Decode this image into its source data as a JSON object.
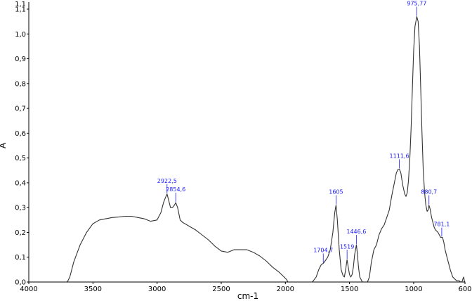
{
  "chart_data": {
    "type": "line",
    "xlabel": "cm-1",
    "ylabel": "A",
    "xlim": [
      4000,
      600
    ],
    "ylim": [
      0.0,
      1.1
    ],
    "x_reversed": true,
    "x_ticks": [
      {
        "v": 4000,
        "label": "4000"
      },
      {
        "v": 3500,
        "label": "3500"
      },
      {
        "v": 3000,
        "label": "3000"
      },
      {
        "v": 2500,
        "label": "2500"
      },
      {
        "v": 2000,
        "label": "2000"
      },
      {
        "v": 1500,
        "label": "1500"
      },
      {
        "v": 1000,
        "label": "1000"
      },
      {
        "v": 600,
        "label": "600"
      }
    ],
    "y_ticks": [
      {
        "v": 0.0,
        "label": "0,0"
      },
      {
        "v": 0.1,
        "label": "0,1"
      },
      {
        "v": 0.2,
        "label": "0,2"
      },
      {
        "v": 0.3,
        "label": "0,3"
      },
      {
        "v": 0.4,
        "label": "0,4"
      },
      {
        "v": 0.5,
        "label": "0,5"
      },
      {
        "v": 0.6,
        "label": "0,6"
      },
      {
        "v": 0.7,
        "label": "0,7"
      },
      {
        "v": 0.8,
        "label": "0,8"
      },
      {
        "v": 0.9,
        "label": "0,9"
      },
      {
        "v": 1.0,
        "label": "1,0"
      },
      {
        "v": 1.1,
        "label": "1,1"
      }
    ],
    "y_top_label": "1,1",
    "grid": false,
    "line_color": "#333333",
    "annotation_color": "#1a1aff",
    "series": [
      {
        "values_x": [
          3700,
          3680,
          3650,
          3600,
          3550,
          3500,
          3450,
          3400,
          3350,
          3300,
          3250,
          3200,
          3150,
          3100,
          3050,
          3000,
          2970,
          2950,
          2935,
          2922.5,
          2910,
          2895,
          2880,
          2865,
          2854.6,
          2840,
          2820,
          2800,
          2750,
          2700,
          2650,
          2600,
          2550,
          2500,
          2450,
          2400,
          2350,
          2300,
          2250,
          2200,
          2150,
          2100,
          2050,
          2010,
          1990,
          1980,
          1800,
          1790,
          1760,
          1740,
          1720,
          1704.7,
          1690,
          1670,
          1650,
          1630,
          1615,
          1605,
          1595,
          1580,
          1565,
          1550,
          1540,
          1530,
          1519,
          1510,
          1500,
          1490,
          1480,
          1470,
          1460,
          1446.6,
          1440,
          1430,
          1420,
          1410,
          1400,
          1390,
          1360,
          1345,
          1330,
          1310,
          1290,
          1270,
          1250,
          1230,
          1210,
          1190,
          1170,
          1150,
          1135,
          1120,
          1111.6,
          1100,
          1085,
          1070,
          1060,
          1050,
          1040,
          1030,
          1020,
          1010,
          1000,
          990,
          975.77,
          965,
          955,
          945,
          935,
          925,
          915,
          905,
          895,
          887,
          880.7,
          872,
          860,
          850,
          840,
          830,
          820,
          810,
          800,
          790,
          781.1,
          775,
          765,
          755,
          745,
          735,
          725,
          715,
          705,
          695,
          685,
          675,
          665,
          655,
          645,
          635,
          625,
          620,
          615,
          610,
          605,
          600
        ],
        "values_y": [
          0.0,
          0.02,
          0.08,
          0.15,
          0.2,
          0.235,
          0.25,
          0.255,
          0.26,
          0.262,
          0.265,
          0.265,
          0.26,
          0.255,
          0.245,
          0.25,
          0.28,
          0.32,
          0.34,
          0.355,
          0.33,
          0.3,
          0.3,
          0.31,
          0.32,
          0.3,
          0.25,
          0.24,
          0.225,
          0.21,
          0.19,
          0.17,
          0.145,
          0.125,
          0.12,
          0.13,
          0.13,
          0.13,
          0.12,
          0.105,
          0.085,
          0.06,
          0.04,
          0.02,
          0.01,
          0.0,
          0.0,
          0.0,
          0.02,
          0.05,
          0.07,
          0.075,
          0.085,
          0.1,
          0.13,
          0.2,
          0.28,
          0.31,
          0.25,
          0.13,
          0.05,
          0.025,
          0.02,
          0.05,
          0.09,
          0.06,
          0.03,
          0.02,
          0.03,
          0.06,
          0.11,
          0.15,
          0.12,
          0.06,
          0.02,
          0.01,
          0.0,
          0.0,
          0.0,
          0.02,
          0.08,
          0.13,
          0.15,
          0.19,
          0.215,
          0.23,
          0.26,
          0.29,
          0.35,
          0.4,
          0.44,
          0.455,
          0.455,
          0.44,
          0.39,
          0.355,
          0.345,
          0.36,
          0.41,
          0.5,
          0.62,
          0.78,
          0.93,
          1.03,
          1.07,
          1.05,
          0.95,
          0.78,
          0.6,
          0.45,
          0.36,
          0.31,
          0.285,
          0.29,
          0.31,
          0.295,
          0.26,
          0.24,
          0.22,
          0.21,
          0.205,
          0.2,
          0.19,
          0.18,
          0.18,
          0.18,
          0.16,
          0.13,
          0.11,
          0.09,
          0.07,
          0.05,
          0.035,
          0.02,
          0.015,
          0.01,
          0.005,
          0.005,
          0.005,
          0.0,
          0.0,
          0.005,
          0.015,
          0.02,
          0.005,
          0.0
        ]
      }
    ],
    "annotations": [
      {
        "label": "2922,5",
        "x": 2922.5,
        "y": 0.355
      },
      {
        "label": "2854,6",
        "x": 2854.6,
        "y": 0.32
      },
      {
        "label": "1704,7",
        "x": 1704.7,
        "y": 0.075
      },
      {
        "label": "1605",
        "x": 1605,
        "y": 0.31
      },
      {
        "label": "1519",
        "x": 1519,
        "y": 0.09
      },
      {
        "label": "1446,6",
        "x": 1446.6,
        "y": 0.15
      },
      {
        "label": "1111,6",
        "x": 1111.6,
        "y": 0.455
      },
      {
        "label": "975,77",
        "x": 975.77,
        "y": 1.07
      },
      {
        "label": "880,7",
        "x": 880.7,
        "y": 0.31
      },
      {
        "label": "781,1",
        "x": 781.1,
        "y": 0.18
      }
    ]
  }
}
